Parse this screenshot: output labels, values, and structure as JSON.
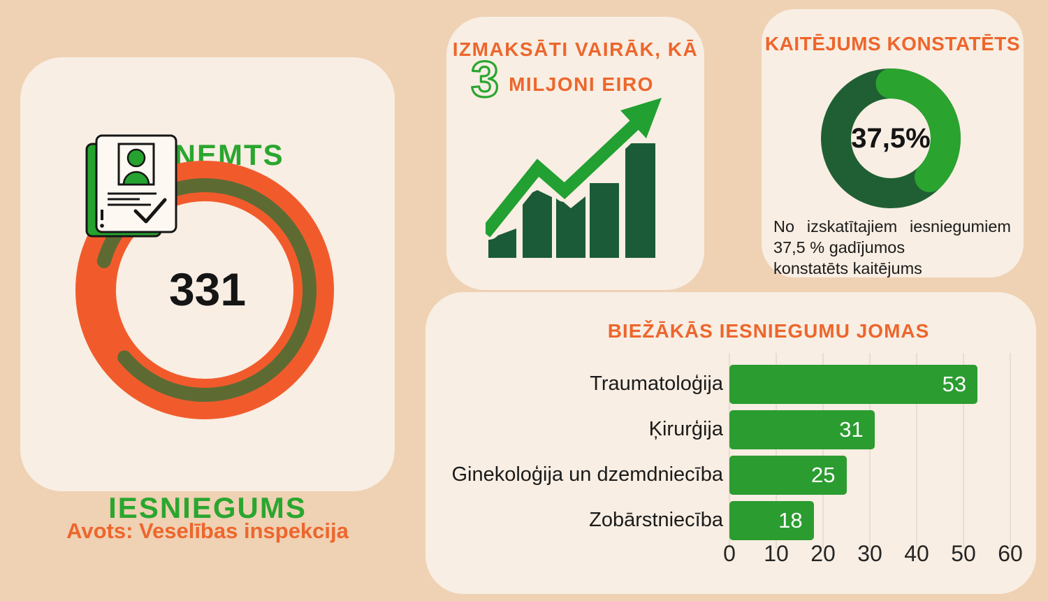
{
  "colors": {
    "background": "#efd1b4",
    "card": "#f8eee3",
    "accent_orange": "#ed662c",
    "accent_green": "#2aa62f",
    "dark_green": "#1f5f33",
    "olive": "#5d6b33",
    "donut_orange": "#f15b2c",
    "bar_green": "#2b9c30"
  },
  "source_note": "Avots: Veselības inspekcija",
  "cards": {
    "received": {
      "title": "SAŅEMTS",
      "count": "331",
      "subtitle": "IESNIEGUMS",
      "icon": "application-document-icon"
    },
    "paid": {
      "title_line1": "IZMAKSĀTI VAIRĀK, KĀ",
      "big_number": "3",
      "title_line2": "MILJONI EIRO",
      "icon": "growth-bar-chart-arrow-icon"
    },
    "harm": {
      "title": "KAITĒJUMS KONSTATĒTS",
      "percentage_label": "37,5%",
      "line1": "No izskatītajiem iesniegumiem",
      "line2": "37,5 % gadījumos",
      "line3": "konstatēts kaitējums"
    },
    "areas": {
      "title": "BIEŽĀKĀS IESNIEGUMU JOMAS"
    }
  },
  "chart_data": [
    {
      "type": "donut",
      "title": "SAŅEMTS IESNIEGUMS",
      "center_label": "331",
      "value": 331,
      "ring_color": "#f15b2c",
      "accent_arc_color": "#5d6b33"
    },
    {
      "type": "donut",
      "title": "KAITĒJUMS KONSTATĒTS",
      "center_label": "37,5%",
      "value_pct": 37.5,
      "base_color": "#1f5f33",
      "value_color": "#2aa32f",
      "note": "No izskatītajiem iesniegumiem 37,5 % gadījumos konstatēts kaitējums"
    },
    {
      "type": "bar",
      "orientation": "horizontal",
      "title": "BIEŽĀKĀS IESNIEGUMU JOMAS",
      "categories": [
        "Traumatoloģija",
        "Ķirurģija",
        "Ginekoloģija un dzemdniecība",
        "Zobārstniecība"
      ],
      "values": [
        53,
        31,
        25,
        18
      ],
      "xlim": [
        0,
        60
      ],
      "xticks": [
        0,
        10,
        20,
        30,
        40,
        50,
        60
      ],
      "grid": true,
      "bar_color": "#2b9c30",
      "value_label_color": "#ffffff"
    }
  ]
}
